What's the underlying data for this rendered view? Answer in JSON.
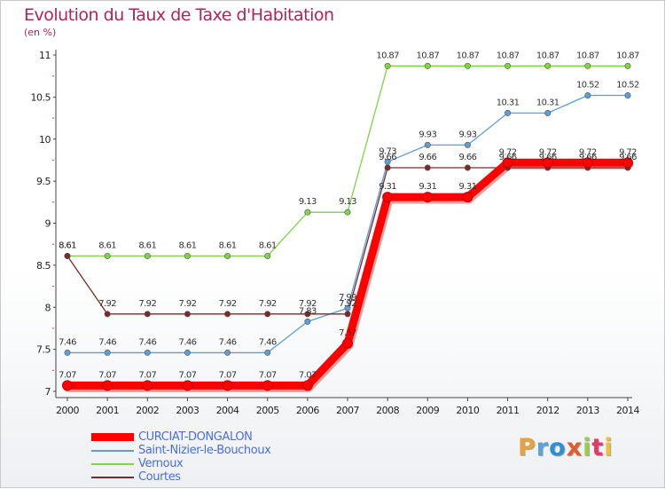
{
  "title": "Evolution du Taux de Taxe d'Habitation",
  "subtitle": "(en %)",
  "logo": {
    "text": "Proxiti",
    "colors": [
      "#e8a23a",
      "#5aa2d8",
      "#2f8fd0",
      "#e45a2b",
      "#9acd4a",
      "#e23a6a",
      "#f0c030"
    ]
  },
  "chart_data": {
    "type": "line",
    "x": [
      2000,
      2001,
      2002,
      2003,
      2004,
      2005,
      2006,
      2007,
      2008,
      2009,
      2010,
      2011,
      2012,
      2013,
      2014
    ],
    "ylim": [
      7,
      11
    ],
    "yticks": [
      "7",
      "7.5",
      "8",
      "8.5",
      "9",
      "9.5",
      "10",
      "10.5",
      "11"
    ],
    "grid": false,
    "legend_position": "bottom-left",
    "series": [
      {
        "name": "CURCIAT-DONGALON",
        "color": "#ff0000",
        "values": [
          7.07,
          7.07,
          7.07,
          7.07,
          7.07,
          7.07,
          7.07,
          7.57,
          9.31,
          9.31,
          9.31,
          9.72,
          9.72,
          9.72,
          9.72
        ],
        "labels": [
          "7.07",
          "7.07",
          "7.07",
          "7.07",
          "7.07",
          "7.07",
          "7.07",
          "7.57",
          "9.31",
          "9.31",
          "9.31",
          "9.72",
          "9.72",
          "9.72",
          "9.72"
        ]
      },
      {
        "name": "Saint-Nizier-le-Bouchoux",
        "color": "#5e9ed6",
        "values": [
          7.46,
          7.46,
          7.46,
          7.46,
          7.46,
          7.46,
          7.83,
          7.99,
          9.73,
          9.93,
          9.93,
          10.31,
          10.31,
          10.52,
          10.52
        ],
        "labels": [
          "7.46",
          "7.46",
          "7.46",
          "7.46",
          "7.46",
          "7.46",
          "7.83",
          "7.99",
          "9.73",
          "9.93",
          "9.93",
          "10.31",
          "10.31",
          "10.52",
          "10.52"
        ]
      },
      {
        "name": "Vernoux",
        "color": "#7fd24a",
        "values": [
          8.61,
          8.61,
          8.61,
          8.61,
          8.61,
          8.61,
          9.13,
          9.13,
          10.87,
          10.87,
          10.87,
          10.87,
          10.87,
          10.87,
          10.87
        ],
        "labels": [
          "8.61",
          "8.61",
          "8.61",
          "8.61",
          "8.61",
          "8.61",
          "9.13",
          "9.13",
          "10.87",
          "10.87",
          "10.87",
          "10.87",
          "10.87",
          "10.87",
          "10.87"
        ]
      },
      {
        "name": "Courtes",
        "color": "#7a2a2a",
        "values": [
          8.61,
          7.92,
          7.92,
          7.92,
          7.92,
          7.92,
          7.92,
          7.92,
          9.66,
          9.66,
          9.66,
          9.66,
          9.66,
          9.66,
          9.66
        ],
        "labels": [
          "8.61",
          "7.92",
          "7.92",
          "7.92",
          "7.92",
          "7.92",
          "7.92",
          "7.92",
          "9.66",
          "9.66",
          "9.66",
          "9.66",
          "9.66",
          "9.66",
          "9.66"
        ]
      }
    ]
  }
}
